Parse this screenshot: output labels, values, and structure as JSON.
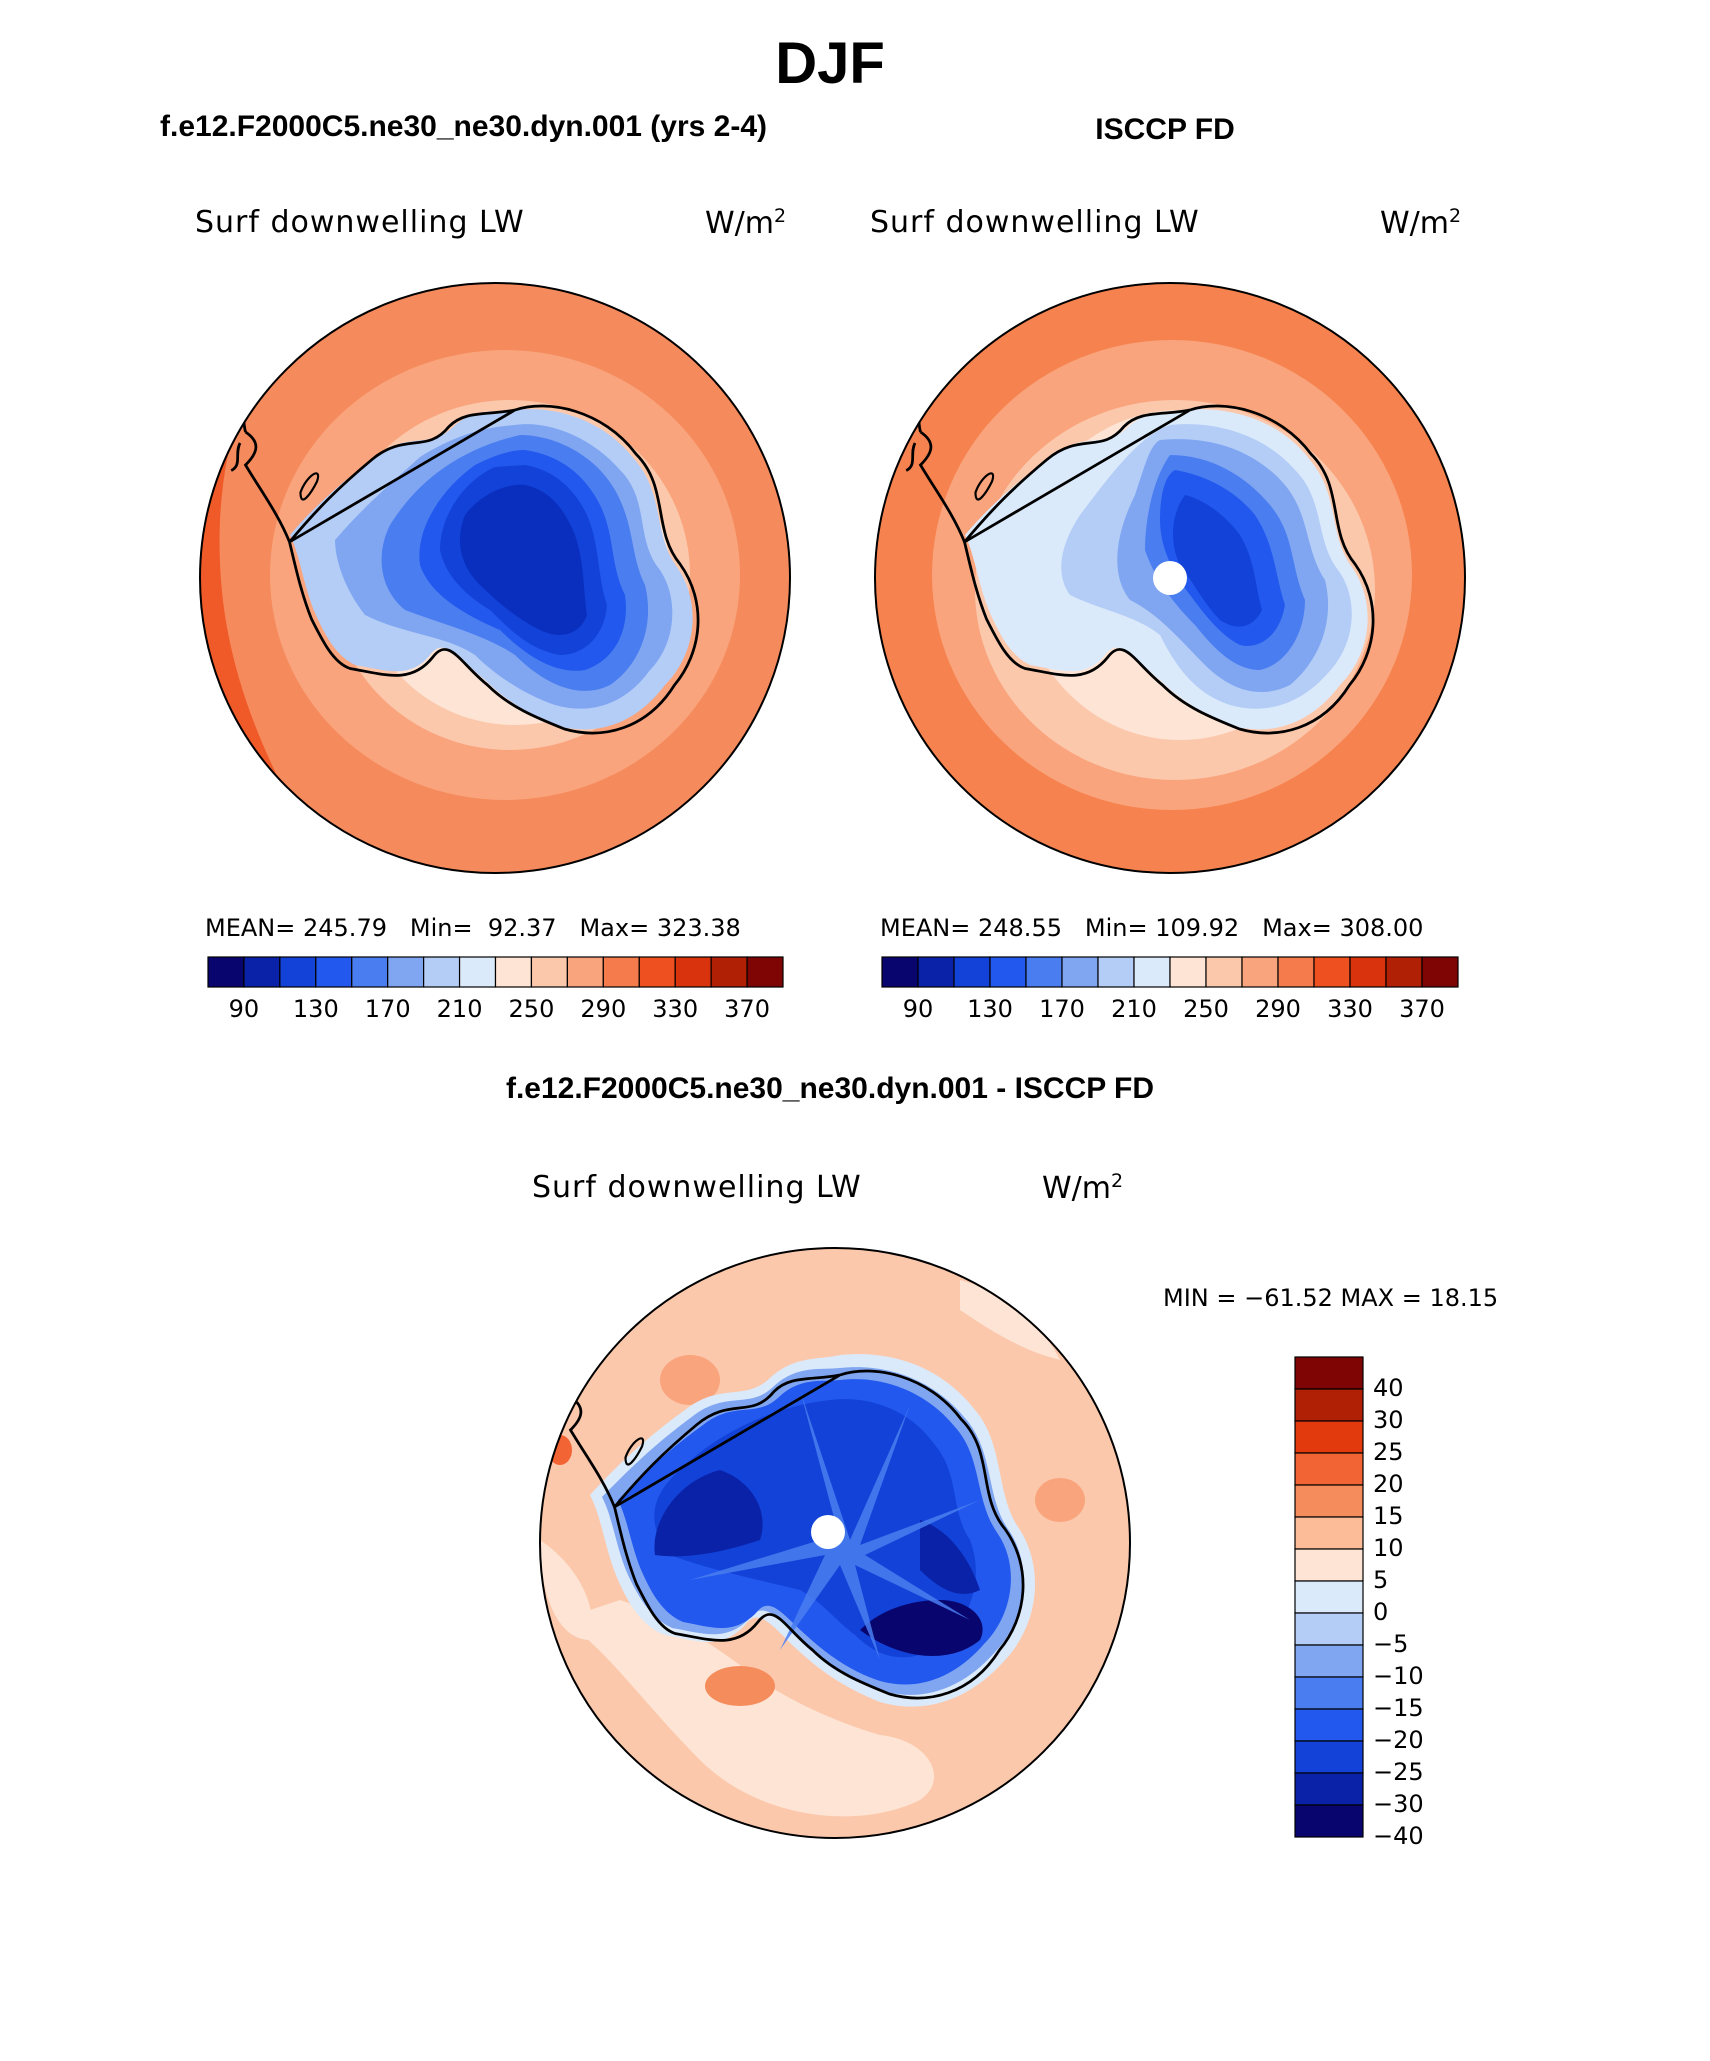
{
  "page": {
    "title": "DJF",
    "left_title": "f.e12.F2000C5.ne30_ne30.dyn.001 (yrs 2-4)",
    "right_title": "ISCCP FD",
    "diff_title": "f.e12.F2000C5.ne30_ne30.dyn.001 - ISCCP FD"
  },
  "panels": {
    "model": {
      "label": "Surf downwelling LW",
      "units_base": "W/m",
      "units_exp": "2",
      "mean_label": "MEAN=",
      "mean": "245.79",
      "min_label": "Min=",
      "min": "92.37",
      "max_label": "Max=",
      "max": "323.38"
    },
    "obs": {
      "label": "Surf downwelling LW",
      "units_base": "W/m",
      "units_exp": "2",
      "mean_label": "MEAN=",
      "mean": "248.55",
      "min_label": "Min=",
      "min": "109.92",
      "max_label": "Max=",
      "max": "308.00"
    },
    "diff": {
      "label": "Surf downwelling LW",
      "units_base": "W/m",
      "units_exp": "2",
      "minmax_text": "MIN = −61.52 MAX =   18.15"
    }
  },
  "colorbar_main": {
    "colors": [
      "#08066e",
      "#0a22a8",
      "#1242d8",
      "#2258ee",
      "#4a7ef0",
      "#80a6f2",
      "#b4cdf6",
      "#dbeafb",
      "#fde4d4",
      "#fcc8ac",
      "#f9a47c",
      "#f57a4c",
      "#ef5020",
      "#d8330c",
      "#b02004",
      "#7e0504"
    ],
    "labels": [
      "90",
      "130",
      "170",
      "210",
      "250",
      "290",
      "330",
      "370"
    ]
  },
  "colorbar_diff": {
    "colors": [
      "#7e0504",
      "#b02004",
      "#e23a0c",
      "#f26434",
      "#f58c5c",
      "#fcbc98",
      "#fde4d4",
      "#dbeafb",
      "#b4cdf6",
      "#80a6f2",
      "#4a7ef0",
      "#2258ee",
      "#1242d8",
      "#0a22a8",
      "#08066e"
    ],
    "labels": [
      "40",
      "30",
      "25",
      "20",
      "15",
      "10",
      "5",
      "0",
      "−5",
      "−10",
      "−15",
      "−20",
      "−25",
      "−30",
      "−40"
    ]
  }
}
